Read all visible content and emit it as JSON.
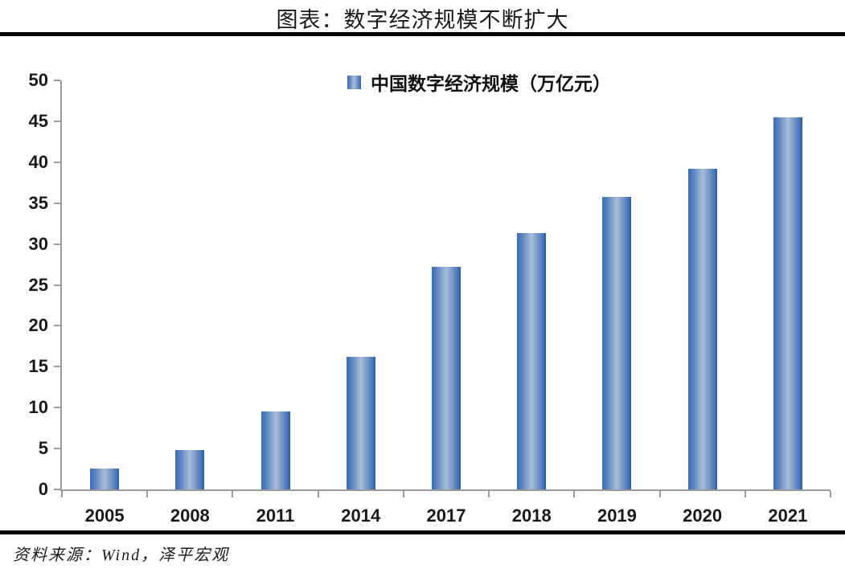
{
  "title": "图表：数字经济规模不断扩大",
  "legend": {
    "label": "中国数字经济规模（万亿元）"
  },
  "source": "资料来源：Wind，泽平宏观",
  "colors": {
    "title_text": "#1A1A1A",
    "divider_rule": "#000000",
    "axis_line": "#9B9B9B",
    "bar_edge": "#2E61AD",
    "bar_center": "#A8BDD7",
    "axis_label_text": "#1A1A1A"
  },
  "chart_data": {
    "type": "bar",
    "title": "中国数字经济规模（万亿元）",
    "categories": [
      "2005",
      "2008",
      "2011",
      "2014",
      "2017",
      "2018",
      "2019",
      "2020",
      "2021"
    ],
    "values": [
      2.6,
      4.8,
      9.5,
      16.2,
      27.2,
      31.3,
      35.8,
      39.2,
      45.5
    ],
    "xlabel": "",
    "ylabel": "",
    "ylim": [
      0,
      50
    ],
    "yticks": [
      0,
      5,
      10,
      15,
      20,
      25,
      30,
      35,
      40,
      45,
      50
    ],
    "grid": false,
    "legend_position": "top-center",
    "bar_style": "gradient-cylinder"
  }
}
